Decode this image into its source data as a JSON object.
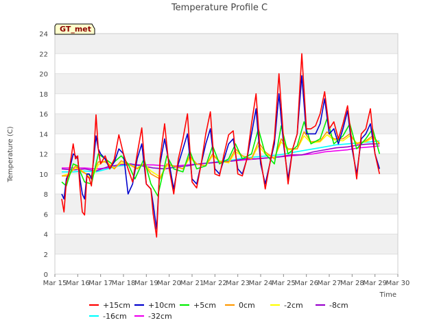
{
  "chart_data": {
    "type": "line",
    "title": "Temperature Profile C",
    "xlabel": "Time",
    "ylabel": "Temperature (C)",
    "badge": "GT_met",
    "ylim": [
      0,
      24
    ],
    "yticks": [
      0,
      2,
      4,
      6,
      8,
      10,
      12,
      14,
      16,
      18,
      20,
      22,
      24
    ],
    "xlim": [
      15,
      30
    ],
    "xticks": [
      {
        "value": 15,
        "label": "Mar 15"
      },
      {
        "value": 16,
        "label": "Mar 16"
      },
      {
        "value": 17,
        "label": "Mar 17"
      },
      {
        "value": 18,
        "label": "Mar 18"
      },
      {
        "value": 19,
        "label": "Mar 19"
      },
      {
        "value": 20,
        "label": "Mar 20"
      },
      {
        "value": 21,
        "label": "Mar 21"
      },
      {
        "value": 22,
        "label": "Mar 22"
      },
      {
        "value": 23,
        "label": "Mar 23"
      },
      {
        "value": 24,
        "label": "Mar 24"
      },
      {
        "value": 25,
        "label": "Mar 25"
      },
      {
        "value": 26,
        "label": "Mar 26"
      },
      {
        "value": 27,
        "label": "Mar 27"
      },
      {
        "value": 28,
        "label": "Mar 28"
      },
      {
        "value": 29,
        "label": "Mar 29"
      },
      {
        "value": 30,
        "label": "Mar 30"
      }
    ],
    "grid": "horizontal banded",
    "legend_position": "bottom",
    "series": [
      {
        "name": "+15cm",
        "color": "#ff0000",
        "x": [
          15.3,
          15.4,
          15.5,
          15.6,
          15.8,
          15.9,
          16.0,
          16.1,
          16.2,
          16.3,
          16.4,
          16.5,
          16.6,
          16.7,
          16.8,
          16.9,
          17.0,
          17.2,
          17.4,
          17.6,
          17.8,
          18.0,
          18.2,
          18.4,
          18.6,
          18.8,
          19.0,
          19.2,
          19.3,
          19.45,
          19.6,
          19.8,
          20.0,
          20.2,
          20.4,
          20.6,
          20.8,
          21.0,
          21.2,
          21.4,
          21.6,
          21.8,
          22.0,
          22.2,
          22.4,
          22.6,
          22.8,
          23.0,
          23.2,
          23.4,
          23.6,
          23.8,
          24.0,
          24.2,
          24.4,
          24.6,
          24.8,
          25.0,
          25.2,
          25.4,
          25.6,
          25.8,
          26.0,
          26.2,
          26.4,
          26.6,
          26.8,
          27.0,
          27.2,
          27.4,
          27.6,
          27.8,
          28.0,
          28.2,
          28.4,
          28.6,
          28.8,
          29.0,
          29.2
        ],
        "y": [
          7.5,
          6.2,
          9.2,
          10.0,
          13.0,
          11.5,
          11.8,
          8.5,
          6.2,
          5.9,
          9.8,
          9.6,
          8.8,
          12.0,
          15.9,
          12.5,
          11.0,
          11.8,
          10.5,
          11.5,
          13.9,
          12.0,
          10.5,
          9.2,
          12.0,
          14.6,
          9.0,
          8.5,
          6.0,
          3.7,
          11.5,
          15.0,
          10.5,
          8.0,
          11.5,
          13.5,
          16.0,
          9.2,
          8.6,
          11.0,
          14.0,
          16.2,
          10.0,
          9.8,
          12.0,
          13.9,
          14.3,
          10.0,
          9.8,
          11.5,
          15.0,
          18.0,
          11.5,
          8.5,
          11.0,
          13.5,
          20.0,
          13.5,
          9.0,
          12.5,
          14.0,
          22.0,
          14.5,
          14.5,
          14.8,
          16.0,
          18.2,
          14.5,
          15.2,
          13.5,
          15.0,
          16.8,
          13.0,
          9.5,
          14.0,
          14.5,
          16.5,
          12.0,
          10.0
        ]
      },
      {
        "name": "+10cm",
        "color": "#0000cc",
        "x": [
          15.3,
          15.4,
          15.5,
          15.6,
          15.8,
          15.9,
          16.0,
          16.1,
          16.2,
          16.3,
          16.4,
          16.5,
          16.6,
          16.7,
          16.8,
          16.9,
          17.0,
          17.2,
          17.4,
          17.6,
          17.8,
          18.0,
          18.2,
          18.4,
          18.6,
          18.8,
          19.0,
          19.2,
          19.3,
          19.45,
          19.6,
          19.8,
          20.0,
          20.2,
          20.4,
          20.6,
          20.8,
          21.0,
          21.2,
          21.4,
          21.6,
          21.8,
          22.0,
          22.2,
          22.4,
          22.6,
          22.8,
          23.0,
          23.2,
          23.4,
          23.6,
          23.8,
          24.0,
          24.2,
          24.4,
          24.6,
          24.8,
          25.0,
          25.2,
          25.4,
          25.6,
          25.8,
          26.0,
          26.2,
          26.4,
          26.6,
          26.8,
          27.0,
          27.2,
          27.4,
          27.6,
          27.8,
          28.0,
          28.2,
          28.4,
          28.6,
          28.8,
          29.0,
          29.2
        ],
        "y": [
          8.0,
          7.5,
          9.5,
          10.0,
          12.0,
          11.8,
          11.5,
          9.5,
          8.0,
          7.5,
          10.0,
          10.0,
          9.5,
          11.5,
          13.8,
          12.5,
          12.0,
          11.5,
          10.5,
          11.2,
          12.5,
          12.0,
          8.0,
          9.0,
          11.5,
          13.0,
          9.0,
          8.5,
          7.0,
          4.5,
          11.0,
          13.5,
          11.0,
          8.5,
          11.0,
          12.5,
          14.0,
          9.5,
          9.0,
          11.0,
          13.0,
          14.5,
          10.5,
          10.0,
          11.5,
          13.0,
          13.5,
          10.5,
          10.0,
          11.5,
          14.0,
          16.5,
          11.0,
          9.0,
          11.0,
          13.0,
          18.0,
          13.0,
          9.5,
          12.5,
          14.0,
          19.8,
          14.0,
          14.0,
          14.0,
          15.0,
          17.5,
          14.0,
          14.5,
          13.0,
          14.5,
          16.3,
          12.5,
          10.0,
          13.5,
          14.0,
          15.0,
          12.0,
          10.5
        ]
      },
      {
        "name": "+5cm",
        "color": "#00ee00",
        "x": [
          15.3,
          15.5,
          15.8,
          16.0,
          16.3,
          16.6,
          16.9,
          17.2,
          17.5,
          17.9,
          18.2,
          18.5,
          18.9,
          19.2,
          19.5,
          19.9,
          20.2,
          20.6,
          20.9,
          21.2,
          21.6,
          21.9,
          22.2,
          22.6,
          22.9,
          23.2,
          23.6,
          23.9,
          24.2,
          24.6,
          24.9,
          25.2,
          25.6,
          25.9,
          26.2,
          26.6,
          26.9,
          27.2,
          27.6,
          27.9,
          28.2,
          28.6,
          28.9,
          29.2
        ],
        "y": [
          9.2,
          8.8,
          11.0,
          10.8,
          9.2,
          9.0,
          12.0,
          11.5,
          11.0,
          11.8,
          11.0,
          9.5,
          11.5,
          9.0,
          7.8,
          11.8,
          10.5,
          10.2,
          12.3,
          10.5,
          10.8,
          12.8,
          11.0,
          11.5,
          13.0,
          11.5,
          12.0,
          14.5,
          12.0,
          11.0,
          14.8,
          12.0,
          12.8,
          15.2,
          13.0,
          13.5,
          15.5,
          13.0,
          13.8,
          15.0,
          12.5,
          13.5,
          14.5,
          12.0
        ]
      },
      {
        "name": "0cm",
        "color": "#ff9900",
        "x": [
          15.3,
          15.6,
          15.9,
          16.2,
          16.6,
          16.9,
          17.2,
          17.6,
          17.9,
          18.2,
          18.6,
          18.9,
          19.2,
          19.6,
          19.9,
          20.2,
          20.6,
          20.9,
          21.2,
          21.6,
          21.9,
          22.2,
          22.6,
          22.9,
          23.2,
          23.6,
          23.9,
          24.2,
          24.6,
          24.9,
          25.2,
          25.6,
          25.9,
          26.2,
          26.6,
          26.9,
          27.2,
          27.6,
          27.9,
          28.2,
          28.6,
          28.9,
          29.2
        ],
        "y": [
          9.8,
          9.8,
          10.8,
          10.2,
          9.8,
          11.2,
          11.2,
          10.5,
          11.3,
          11.0,
          10.5,
          11.0,
          10.0,
          9.5,
          11.0,
          10.8,
          10.5,
          11.8,
          11.0,
          10.8,
          12.0,
          11.2,
          11.2,
          12.5,
          11.8,
          11.5,
          13.2,
          12.2,
          11.5,
          13.5,
          12.5,
          12.5,
          14.2,
          13.2,
          13.3,
          14.2,
          13.5,
          13.5,
          14.0,
          13.0,
          13.3,
          13.8,
          13.0
        ]
      },
      {
        "name": "-2cm",
        "color": "#ffff00",
        "x": [
          15.3,
          15.6,
          15.9,
          16.2,
          16.6,
          16.9,
          17.2,
          17.6,
          17.9,
          18.2,
          18.6,
          18.9,
          19.2,
          19.6,
          19.9,
          20.2,
          20.6,
          20.9,
          21.2,
          21.6,
          21.9,
          22.2,
          22.6,
          22.9,
          23.2,
          23.6,
          23.9,
          24.2,
          24.6,
          24.9,
          25.2,
          25.6,
          25.9,
          26.2,
          26.6,
          26.9,
          27.2,
          27.6,
          27.9,
          28.2,
          28.6,
          28.9,
          29.2
        ],
        "y": [
          9.8,
          10.0,
          10.6,
          10.3,
          9.5,
          10.9,
          11.3,
          10.6,
          11.1,
          11.0,
          10.6,
          11.0,
          10.3,
          9.7,
          10.8,
          10.8,
          10.5,
          11.6,
          11.0,
          10.8,
          11.8,
          11.3,
          11.1,
          12.2,
          11.8,
          11.5,
          12.8,
          12.0,
          11.6,
          13.2,
          12.4,
          12.5,
          13.8,
          13.1,
          13.2,
          13.9,
          13.4,
          13.3,
          13.8,
          13.1,
          13.2,
          13.6,
          13.1
        ]
      },
      {
        "name": "-8cm",
        "color": "#9900cc",
        "x": [
          15.3,
          15.8,
          16.3,
          16.8,
          17.3,
          17.8,
          18.3,
          18.8,
          19.3,
          19.8,
          20.3,
          20.8,
          21.3,
          21.8,
          22.3,
          22.8,
          23.3,
          23.8,
          24.3,
          24.8,
          25.3,
          25.8,
          26.3,
          26.8,
          27.3,
          27.8,
          28.3,
          28.8,
          29.2
        ],
        "y": [
          10.5,
          10.4,
          10.5,
          10.3,
          10.7,
          10.9,
          11.0,
          10.8,
          10.6,
          10.5,
          10.7,
          10.8,
          11.0,
          11.1,
          11.2,
          11.3,
          11.5,
          11.5,
          11.6,
          11.7,
          11.9,
          11.9,
          12.2,
          12.4,
          12.6,
          12.7,
          12.9,
          13.0,
          13.0
        ]
      },
      {
        "name": "-16cm",
        "color": "#00ffff",
        "x": [
          15.3,
          15.8,
          16.3,
          16.8,
          17.3,
          17.8,
          18.3,
          18.8,
          19.3,
          19.8,
          20.3,
          20.8,
          21.3,
          21.8,
          22.3,
          22.8,
          23.3,
          23.8,
          24.3,
          24.8,
          25.3,
          25.8,
          26.3,
          26.8,
          27.3,
          27.8,
          28.3,
          28.8,
          29.2
        ],
        "y": [
          10.2,
          10.2,
          10.3,
          10.2,
          10.5,
          10.8,
          10.9,
          10.8,
          10.6,
          10.5,
          10.7,
          10.8,
          11.0,
          11.1,
          11.3,
          11.4,
          11.6,
          11.7,
          11.8,
          11.9,
          12.1,
          12.3,
          12.5,
          12.7,
          12.9,
          13.0,
          13.1,
          13.2,
          13.3
        ]
      },
      {
        "name": "-32cm",
        "color": "#ee00ee",
        "x": [
          15.3,
          15.8,
          16.3,
          16.8,
          17.3,
          17.8,
          18.3,
          18.8,
          19.3,
          19.8,
          20.3,
          20.8,
          21.3,
          21.8,
          22.3,
          22.8,
          23.3,
          23.8,
          24.3,
          24.8,
          25.3,
          25.8,
          26.3,
          26.8,
          27.3,
          27.8,
          28.3,
          28.8,
          29.2
        ],
        "y": [
          10.6,
          10.6,
          10.6,
          10.5,
          10.6,
          10.8,
          10.9,
          10.9,
          10.9,
          10.8,
          10.8,
          10.9,
          11.0,
          11.1,
          11.2,
          11.3,
          11.4,
          11.5,
          11.6,
          11.7,
          11.8,
          11.9,
          12.0,
          12.2,
          12.3,
          12.4,
          12.6,
          12.7,
          12.8
        ]
      }
    ]
  }
}
